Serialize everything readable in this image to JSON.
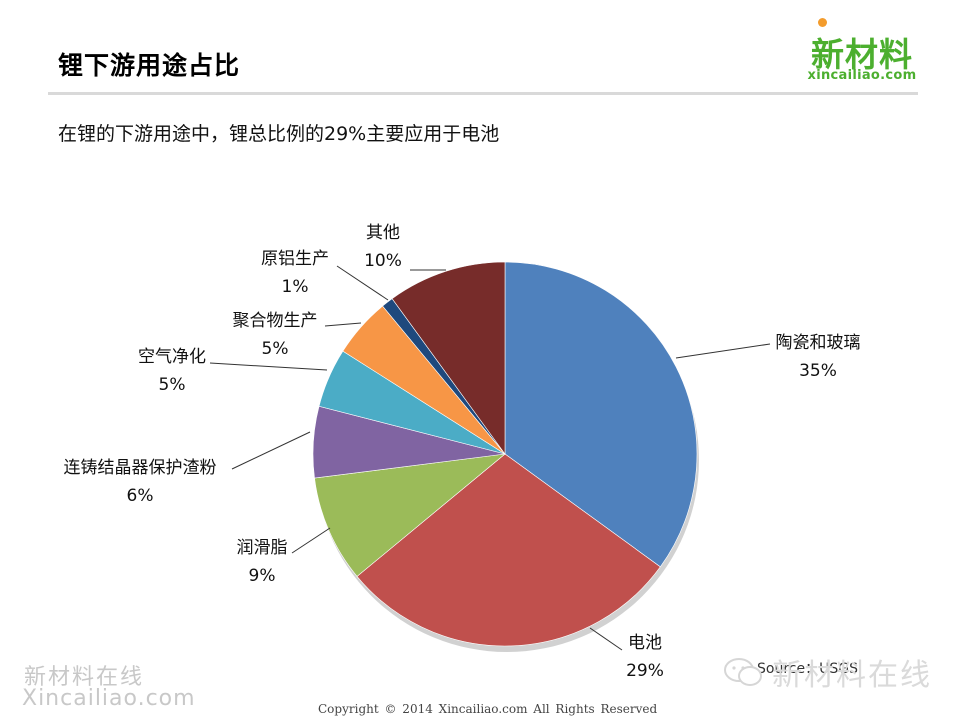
{
  "header": {
    "title": "锂下游用途占比",
    "logo_text": "新材料",
    "logo_domain": "xincailiao.com"
  },
  "subtitle": "在锂的下游用途中，锂总比例的29%主要应用于电池",
  "chart_data": {
    "type": "pie",
    "title": "",
    "start_angle_deg": 0,
    "direction": "clockwise",
    "slices": [
      {
        "name": "陶瓷和玻璃",
        "value": 35,
        "label": "35%",
        "color": "#4f81bd"
      },
      {
        "name": "电池",
        "value": 29,
        "label": "29%",
        "color": "#c0504d"
      },
      {
        "name": "润滑脂",
        "value": 9,
        "label": "9%",
        "color": "#9bbb59"
      },
      {
        "name": "连铸结晶器保护渣粉",
        "value": 6,
        "label": "6%",
        "color": "#8064a2"
      },
      {
        "name": "空气净化",
        "value": 5,
        "label": "5%",
        "color": "#4bacc6"
      },
      {
        "name": "聚合物生产",
        "value": 5,
        "label": "5%",
        "color": "#f79646"
      },
      {
        "name": "原铝生产",
        "value": 1,
        "label": "1%",
        "color": "#1f497d"
      },
      {
        "name": "其他",
        "value": 10,
        "label": "10%",
        "color": "#772c2a"
      }
    ]
  },
  "source": "Source：USGS",
  "watermarks": {
    "left_line1": "新材料在线",
    "left_line2": "Xincailiao.com",
    "right": "新材料在线"
  },
  "footer": {
    "copyright": "Copyright © 2014   Xincailiao.com    All Rights Reserved"
  }
}
